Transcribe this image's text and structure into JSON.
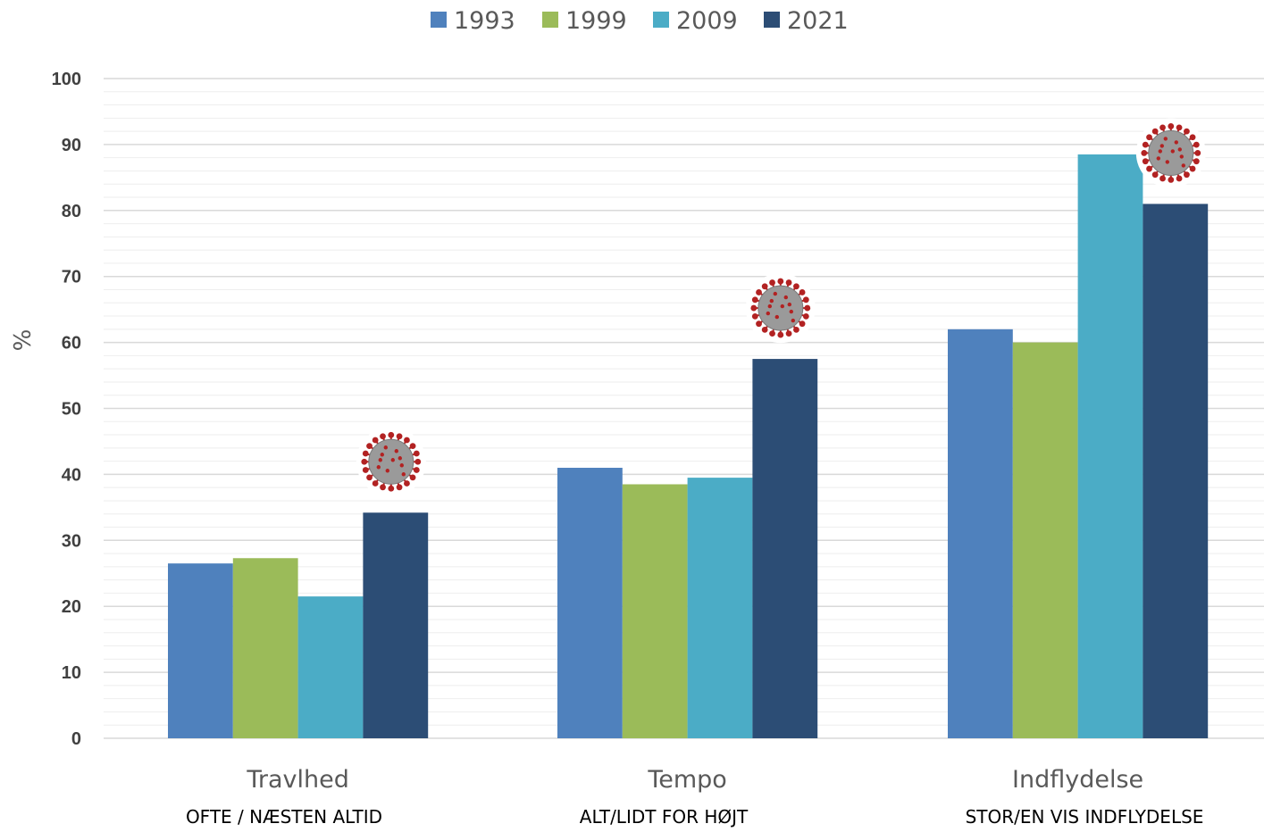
{
  "chart_data": {
    "type": "bar",
    "ylabel": "%",
    "xlabel": "",
    "ylim": [
      0,
      100
    ],
    "yticks": [
      0,
      10,
      20,
      30,
      40,
      50,
      60,
      70,
      80,
      90,
      100
    ],
    "grid": true,
    "legend_position": "top-center",
    "categories": [
      "Travlhed",
      "Tempo",
      "Indflydelse"
    ],
    "subtitles": [
      "OFTE / NÆSTEN ALTID",
      "ALT/LIDT FOR HØJT",
      "STOR/EN VIS INDFLYDELSE"
    ],
    "series": [
      {
        "name": "1993",
        "color": "#4f81bd",
        "values": [
          26.5,
          41,
          62
        ]
      },
      {
        "name": "1999",
        "color": "#9bbb59",
        "values": [
          27.3,
          38.5,
          60
        ]
      },
      {
        "name": "2009",
        "color": "#4bacc6",
        "values": [
          21.5,
          39.5,
          88.5
        ]
      },
      {
        "name": "2021",
        "color": "#2c4d75",
        "values": [
          34.2,
          57.5,
          81
        ]
      }
    ],
    "annotations": [
      {
        "icon": "virus-icon",
        "category": "Travlhed",
        "series": "2021"
      },
      {
        "icon": "virus-icon",
        "category": "Tempo",
        "series": "2021"
      },
      {
        "icon": "virus-icon",
        "category": "Indflydelse",
        "series": "2021"
      }
    ],
    "colors": {
      "gridline": "#d9d9d9",
      "minor_gridline": "#eeeeee",
      "virus_body": "#9a9a9a",
      "virus_spike": "#b22222"
    }
  }
}
